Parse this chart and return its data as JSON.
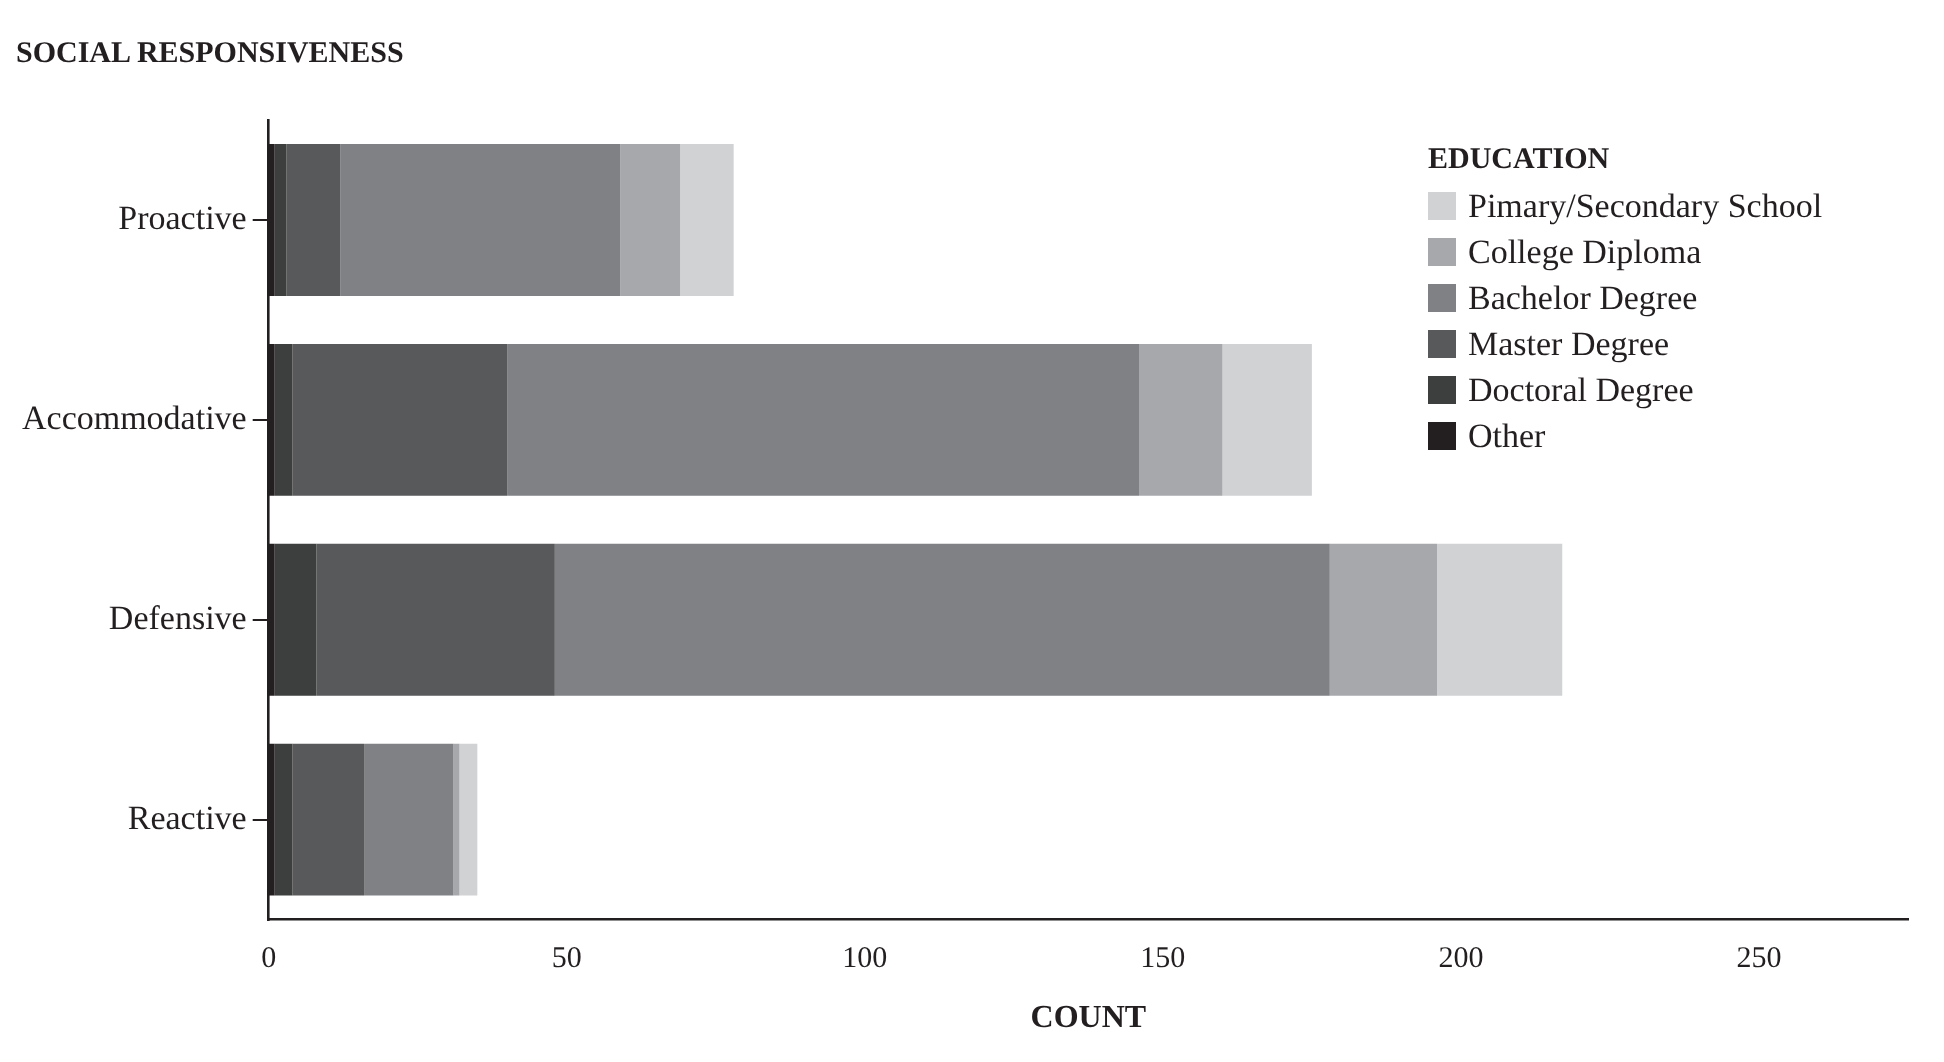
{
  "chart_data": {
    "type": "bar",
    "orientation": "horizontal",
    "stacked": true,
    "title": "SOCIAL RESPONSIVENESS",
    "xlabel": "COUNT",
    "legend_title": "EDUCATION",
    "legend": "top right",
    "grid": false,
    "categories": [
      "Proactive",
      "Accommodative",
      "Defensive",
      "Reactive"
    ],
    "xlim": [
      0,
      275
    ],
    "xticks": [
      0,
      50,
      100,
      150,
      200,
      250
    ],
    "series": [
      {
        "name": "Other",
        "color": "#231f20",
        "values": [
          1,
          1,
          1,
          1
        ]
      },
      {
        "name": "Doctoral Degree",
        "color": "#3d3e3e",
        "values": [
          2,
          3,
          7,
          3
        ]
      },
      {
        "name": "Master Degree",
        "color": "#58595b",
        "values": [
          9,
          36,
          40,
          12
        ]
      },
      {
        "name": "Bachelor Degree",
        "color": "#808184",
        "values": [
          47,
          106,
          130,
          15
        ]
      },
      {
        "name": "College Diploma",
        "color": "#a7a8ab",
        "values": [
          10,
          14,
          18,
          1
        ]
      },
      {
        "name": "Pimary/Secondary School",
        "color": "#d1d2d4",
        "values": [
          9,
          15,
          21,
          3
        ]
      }
    ]
  }
}
